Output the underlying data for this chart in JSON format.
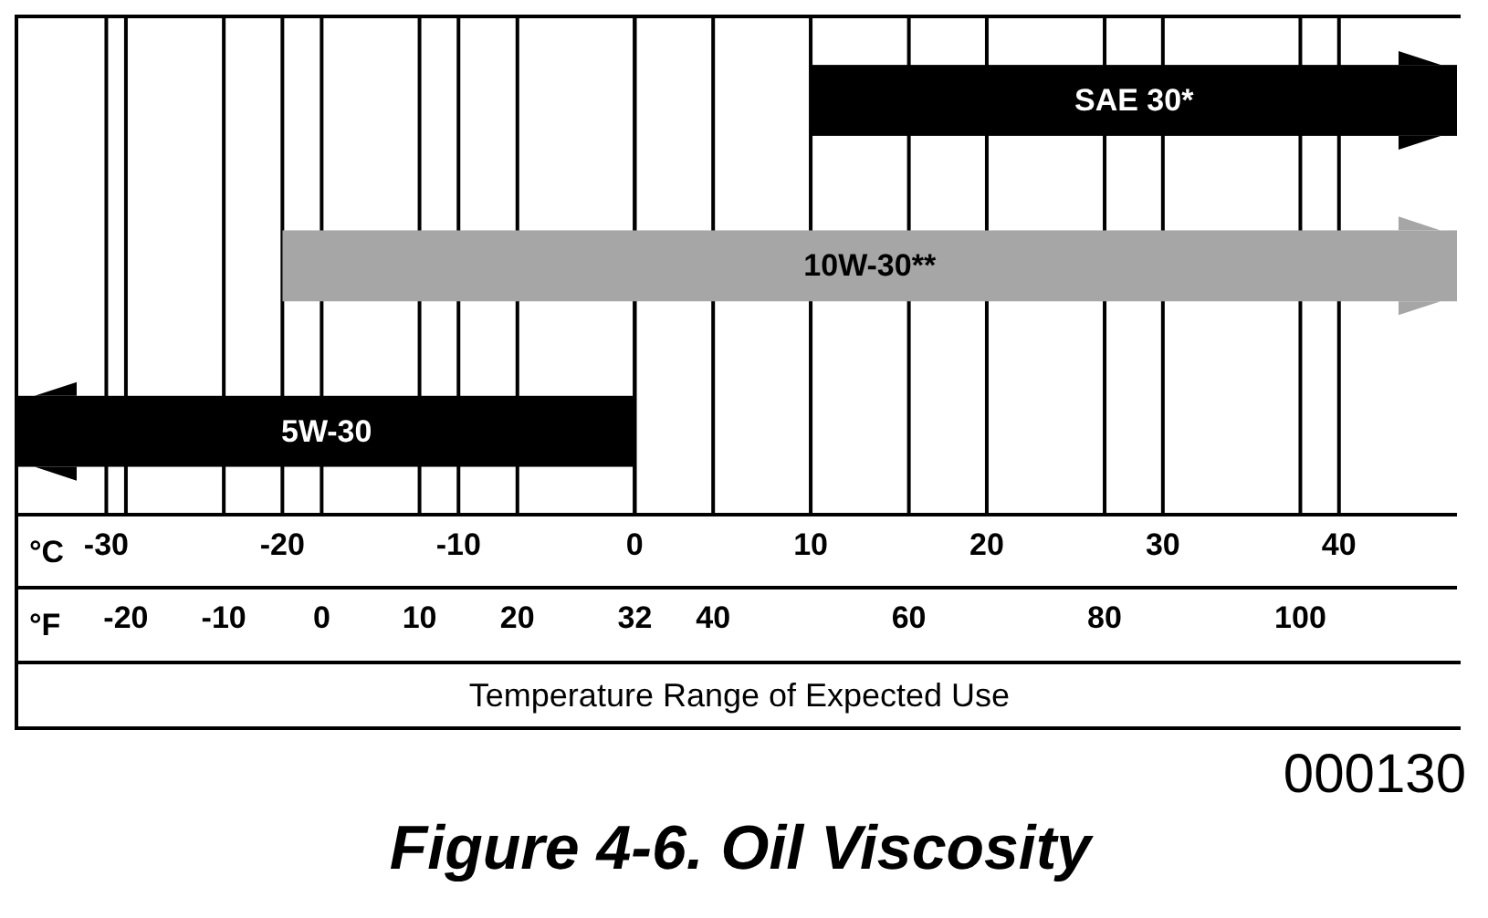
{
  "chart_data": {
    "type": "bar",
    "orientation": "horizontal",
    "title": "Figure 4-6. Oil Viscosity",
    "xlabel": "°F",
    "x2label": "°C",
    "categories": [
      "SAE 30*",
      "10W-30**",
      "5W-30"
    ],
    "base": [
      50,
      -4,
      32
    ],
    "values": [
      66,
      120,
      -63
    ],
    "colors": [
      "#000000",
      "#a6a6a6",
      "#000000"
    ],
    "xlim": [
      -31,
      116
    ],
    "xticks": [
      -20,
      -10,
      0,
      10,
      20,
      32,
      40,
      60,
      80,
      100
    ],
    "x2lim": [
      -35,
      46.7
    ],
    "x2ticks": [
      -30,
      -20,
      -10,
      0,
      10,
      20,
      30,
      40
    ],
    "grid": "x",
    "annotations": [
      "Temperature Range of Expected Use",
      "000130"
    ]
  }
}
